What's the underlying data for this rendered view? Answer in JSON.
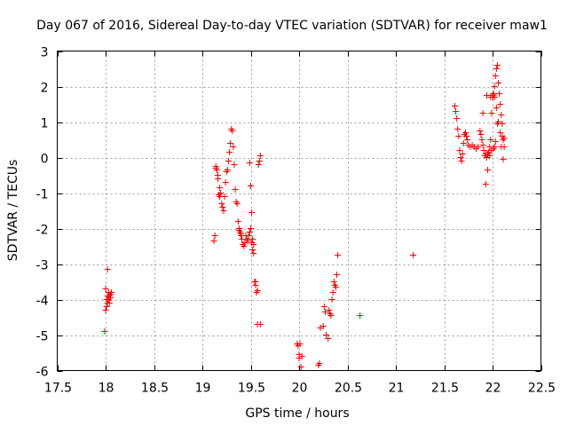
{
  "chart_data": {
    "type": "scatter",
    "title": "Day 067 of 2016, Sidereal Day-to-day VTEC variation (SDTVAR) for receiver maw1",
    "xlabel": "GPS time / hours",
    "ylabel": "SDTVAR / TECUs",
    "xlim": [
      17.5,
      22.5
    ],
    "ylim": [
      -6,
      3
    ],
    "xticks": [
      17.5,
      18,
      18.5,
      19,
      19.5,
      20,
      20.5,
      21,
      21.5,
      22,
      22.5
    ],
    "xtick_labels": [
      "17.5",
      "18",
      "18.5",
      "19",
      "19.5",
      "20",
      "20.5",
      "21",
      "21.5",
      "22",
      "22.5"
    ],
    "yticks": [
      -6,
      -5,
      -4,
      -3,
      -2,
      -1,
      0,
      1,
      2,
      3
    ],
    "ytick_labels": [
      "-6",
      "-5",
      "-4",
      "-3",
      "-2",
      "-1",
      "0",
      "1",
      "2",
      "3"
    ],
    "grid": true,
    "marker": "+",
    "color": "#ff0000",
    "series": [
      {
        "name": "maw1",
        "x": [
          17.99,
          18.0,
          18.0,
          18.01,
          18.01,
          18.02,
          18.02,
          18.03,
          18.03,
          18.04,
          18.04,
          18.05,
          18.05,
          18.06,
          18.0,
          18.02,
          19.12,
          19.13,
          19.14,
          19.14,
          19.15,
          19.16,
          19.16,
          19.17,
          19.18,
          19.18,
          19.19,
          19.2,
          19.21,
          19.22,
          19.23,
          19.24,
          19.25,
          19.26,
          19.27,
          19.28,
          19.29,
          19.3,
          19.31,
          19.32,
          19.33,
          19.34,
          19.35,
          19.36,
          19.37,
          19.38,
          19.38,
          19.39,
          19.4,
          19.4,
          19.41,
          19.42,
          19.43,
          19.44,
          19.45,
          19.46,
          19.47,
          19.48,
          19.49,
          19.5,
          19.51,
          19.52,
          19.53,
          19.54,
          19.55,
          19.56,
          19.57,
          19.58,
          19.59,
          19.6,
          19.49,
          19.5,
          19.51,
          19.52,
          19.53,
          19.55,
          19.57,
          19.6,
          19.98,
          19.99,
          20.0,
          20.0,
          20.01,
          20.02,
          20.03,
          20.2,
          20.21,
          20.22,
          20.25,
          20.26,
          20.27,
          20.28,
          20.3,
          20.31,
          20.32,
          20.33,
          20.34,
          20.35,
          20.36,
          20.37,
          20.38,
          20.39,
          20.4,
          20.63,
          21.18,
          21.61,
          21.62,
          21.63,
          21.64,
          21.65,
          21.66,
          21.67,
          21.68,
          21.69,
          21.7,
          21.71,
          21.72,
          21.73,
          21.74,
          21.75,
          21.77,
          21.79,
          21.81,
          21.83,
          21.85,
          21.87,
          21.88,
          21.89,
          21.9,
          21.91,
          21.92,
          21.93,
          21.94,
          21.95,
          21.96,
          21.97,
          21.98,
          21.99,
          22.0,
          22.01,
          22.02,
          22.03,
          22.04,
          22.05,
          22.06,
          22.07,
          22.08,
          22.09,
          22.1,
          22.11,
          22.12,
          21.93,
          21.95,
          21.97,
          21.99,
          22.01,
          22.02,
          22.03,
          22.0,
          22.01,
          22.02,
          22.04,
          22.06,
          22.08,
          22.1,
          22.12,
          21.9,
          21.94,
          21.98,
          22.05,
          22.09,
          22.11
        ],
        "y": [
          -4.9,
          -4.3,
          -3.7,
          -4.0,
          -4.2,
          -3.9,
          -4.1,
          -3.8,
          -4.0,
          -4.1,
          -3.9,
          -3.85,
          -3.95,
          -3.8,
          -4.3,
          -3.15,
          -2.35,
          -2.2,
          -0.3,
          -0.25,
          -0.35,
          -0.5,
          -0.6,
          -1.05,
          -1.1,
          -0.85,
          -1.0,
          -1.3,
          -1.4,
          -1.5,
          -1.1,
          -0.7,
          -0.4,
          -0.35,
          -0.1,
          0.15,
          0.4,
          0.8,
          0.75,
          0.3,
          -0.2,
          -0.9,
          -1.25,
          -1.3,
          -1.8,
          -2.05,
          -2.0,
          -2.1,
          -2.2,
          -2.15,
          -2.3,
          -2.45,
          -2.5,
          -2.4,
          -2.2,
          -2.3,
          -2.35,
          -2.2,
          -2.1,
          -2.0,
          -2.4,
          -2.6,
          -2.7,
          -3.5,
          -3.6,
          -3.8,
          -4.7,
          -0.2,
          -0.1,
          0.05,
          -0.15,
          -0.8,
          -1.55,
          -2.3,
          -2.45,
          -3.5,
          -3.75,
          -4.7,
          -5.25,
          -5.3,
          -5.55,
          -5.65,
          -5.25,
          -5.9,
          -5.6,
          -5.85,
          -5.8,
          -4.8,
          -4.75,
          -4.2,
          -4.35,
          -5.0,
          -5.1,
          -4.3,
          -4.4,
          -4.45,
          -4.0,
          -3.8,
          -3.5,
          -3.6,
          -3.65,
          -3.3,
          -2.75,
          -4.45,
          -2.75,
          1.45,
          1.3,
          1.1,
          0.8,
          0.6,
          0.2,
          0.0,
          -0.1,
          0.1,
          0.4,
          0.65,
          0.7,
          0.6,
          0.5,
          0.35,
          0.3,
          0.35,
          0.3,
          0.25,
          0.3,
          0.75,
          0.65,
          0.5,
          0.35,
          0.2,
          0.05,
          0.1,
          0.0,
          0.1,
          0.15,
          0.3,
          0.5,
          1.25,
          1.7,
          1.75,
          2.0,
          2.3,
          2.5,
          2.6,
          2.1,
          1.8,
          1.5,
          1.2,
          0.95,
          0.5,
          0.3,
          -0.75,
          -0.35,
          0.05,
          0.2,
          0.25,
          0.3,
          0.45,
          1.75,
          1.8,
          1.7,
          1.4,
          1.0,
          0.7,
          0.6,
          0.55,
          1.25,
          1.75,
          1.7,
          0.95,
          0.3,
          -0.05
        ]
      }
    ]
  }
}
